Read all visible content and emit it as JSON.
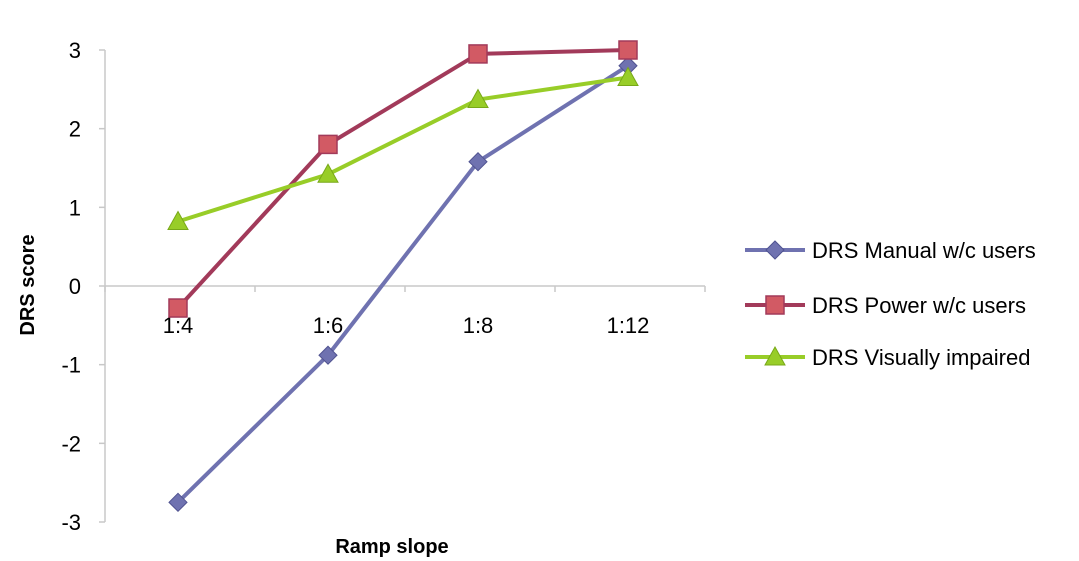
{
  "chart_data": {
    "type": "line",
    "title": "",
    "xlabel": "Ramp slope",
    "ylabel": "DRS score",
    "categories": [
      "1:4",
      "1:6",
      "1:8",
      "1:12"
    ],
    "ylim": [
      -3,
      3
    ],
    "yticks": [
      "3",
      "2",
      "1",
      "0",
      "-1",
      "-2",
      "-3"
    ],
    "grid": false,
    "legend_position": "right",
    "series": [
      {
        "name": "DRS Manual w/c users",
        "values": [
          -2.75,
          -0.88,
          1.58,
          2.8
        ],
        "color": "#6f72b0",
        "marker": "diamond"
      },
      {
        "name": "DRS Power w/c users",
        "values": [
          -0.28,
          1.8,
          2.95,
          3.0
        ],
        "color": "#a23a5a",
        "marker": "square",
        "marker_fill": "#d25a64"
      },
      {
        "name": "DRS Visually impaired",
        "values": [
          0.82,
          1.42,
          2.37,
          2.65
        ],
        "color": "#98cd28",
        "marker": "triangle"
      }
    ]
  }
}
